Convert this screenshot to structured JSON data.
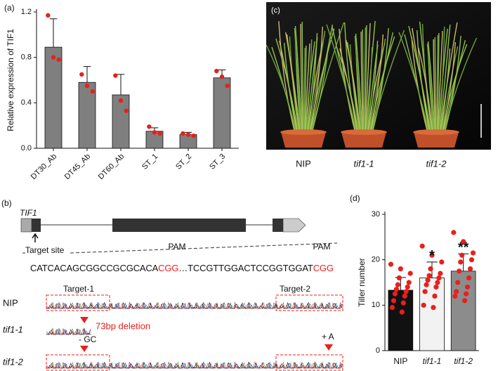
{
  "chart_data": [
    {
      "type": "bar",
      "panel_label": "(a)",
      "ylabel": "Relative expression of TIF1",
      "categories": [
        "DT30_Ab",
        "DT45_Ab",
        "DT60_Ab",
        "ST_1",
        "ST_2",
        "ST_3"
      ],
      "values": [
        0.89,
        0.58,
        0.47,
        0.15,
        0.12,
        0.62
      ],
      "errors": [
        0.25,
        0.14,
        0.18,
        0.03,
        0.02,
        0.07
      ],
      "points": [
        [
          1.17,
          0.8,
          0.78
        ],
        [
          0.65,
          0.55,
          0.5
        ],
        [
          0.64,
          0.42,
          0.33
        ],
        [
          0.19,
          0.14,
          0.13
        ],
        [
          0.13,
          0.12,
          0.11
        ],
        [
          0.68,
          0.63,
          0.55
        ]
      ],
      "color": "#7f7f7f",
      "point_color": "#e8201c",
      "ylim": [
        0,
        1.2
      ],
      "yticks": [
        {
          "value": 0,
          "label": "0.0"
        },
        {
          "value": 0.4,
          "label": "0.4"
        },
        {
          "value": 0.8,
          "label": "0.8"
        },
        {
          "value": 1.2,
          "label": "1.2"
        }
      ]
    },
    {
      "type": "bar",
      "panel_label": "(d)",
      "ylabel": "Tiller number",
      "categories": [
        "NIP",
        "tif1-1",
        "tif1-2"
      ],
      "values": [
        13.3,
        16.0,
        17.5
      ],
      "errors": [
        2.8,
        3.5,
        3.8
      ],
      "significance": [
        null,
        "*",
        "**"
      ],
      "points": [
        [
          19,
          18,
          17,
          16,
          15,
          14.5,
          14,
          13.5,
          13,
          12.5,
          12,
          11,
          10.5,
          9.5,
          8.5
        ],
        [
          23,
          21,
          19.5,
          18,
          17,
          16.5,
          16,
          15.5,
          15,
          14.5,
          14,
          13,
          12,
          10,
          9.5
        ],
        [
          26,
          24,
          21.5,
          21,
          20,
          19.5,
          18,
          17.5,
          16,
          15,
          14,
          13,
          12.5,
          12,
          11
        ]
      ],
      "colors": [
        "#111111",
        "#f2f2f2",
        "#8c8c8c"
      ],
      "point_color": "#e8201c",
      "ylim": [
        0,
        30
      ],
      "yticks": [
        0,
        10,
        20,
        30
      ]
    }
  ],
  "photo": {
    "panel_label": "(c)",
    "labels": [
      "NIP",
      "tif1-1",
      "tif1-2"
    ]
  },
  "gene": {
    "panel_label": "(b)",
    "gene_name": "TIF1",
    "target_site": "Target site",
    "pam": [
      "PAM",
      "PAM"
    ],
    "sequence": [
      "CATCACAGCGGCCGCGCACA",
      "CGG",
      "…TCCGTTGGACTCCGGTGGAT",
      "CGG"
    ],
    "rows": [
      "NIP",
      "tif1-1",
      "tif1-2"
    ],
    "targets": [
      "Target-1",
      "Target-2"
    ],
    "mutations": [
      "73bp deletion",
      "- GC",
      "+ A"
    ]
  }
}
